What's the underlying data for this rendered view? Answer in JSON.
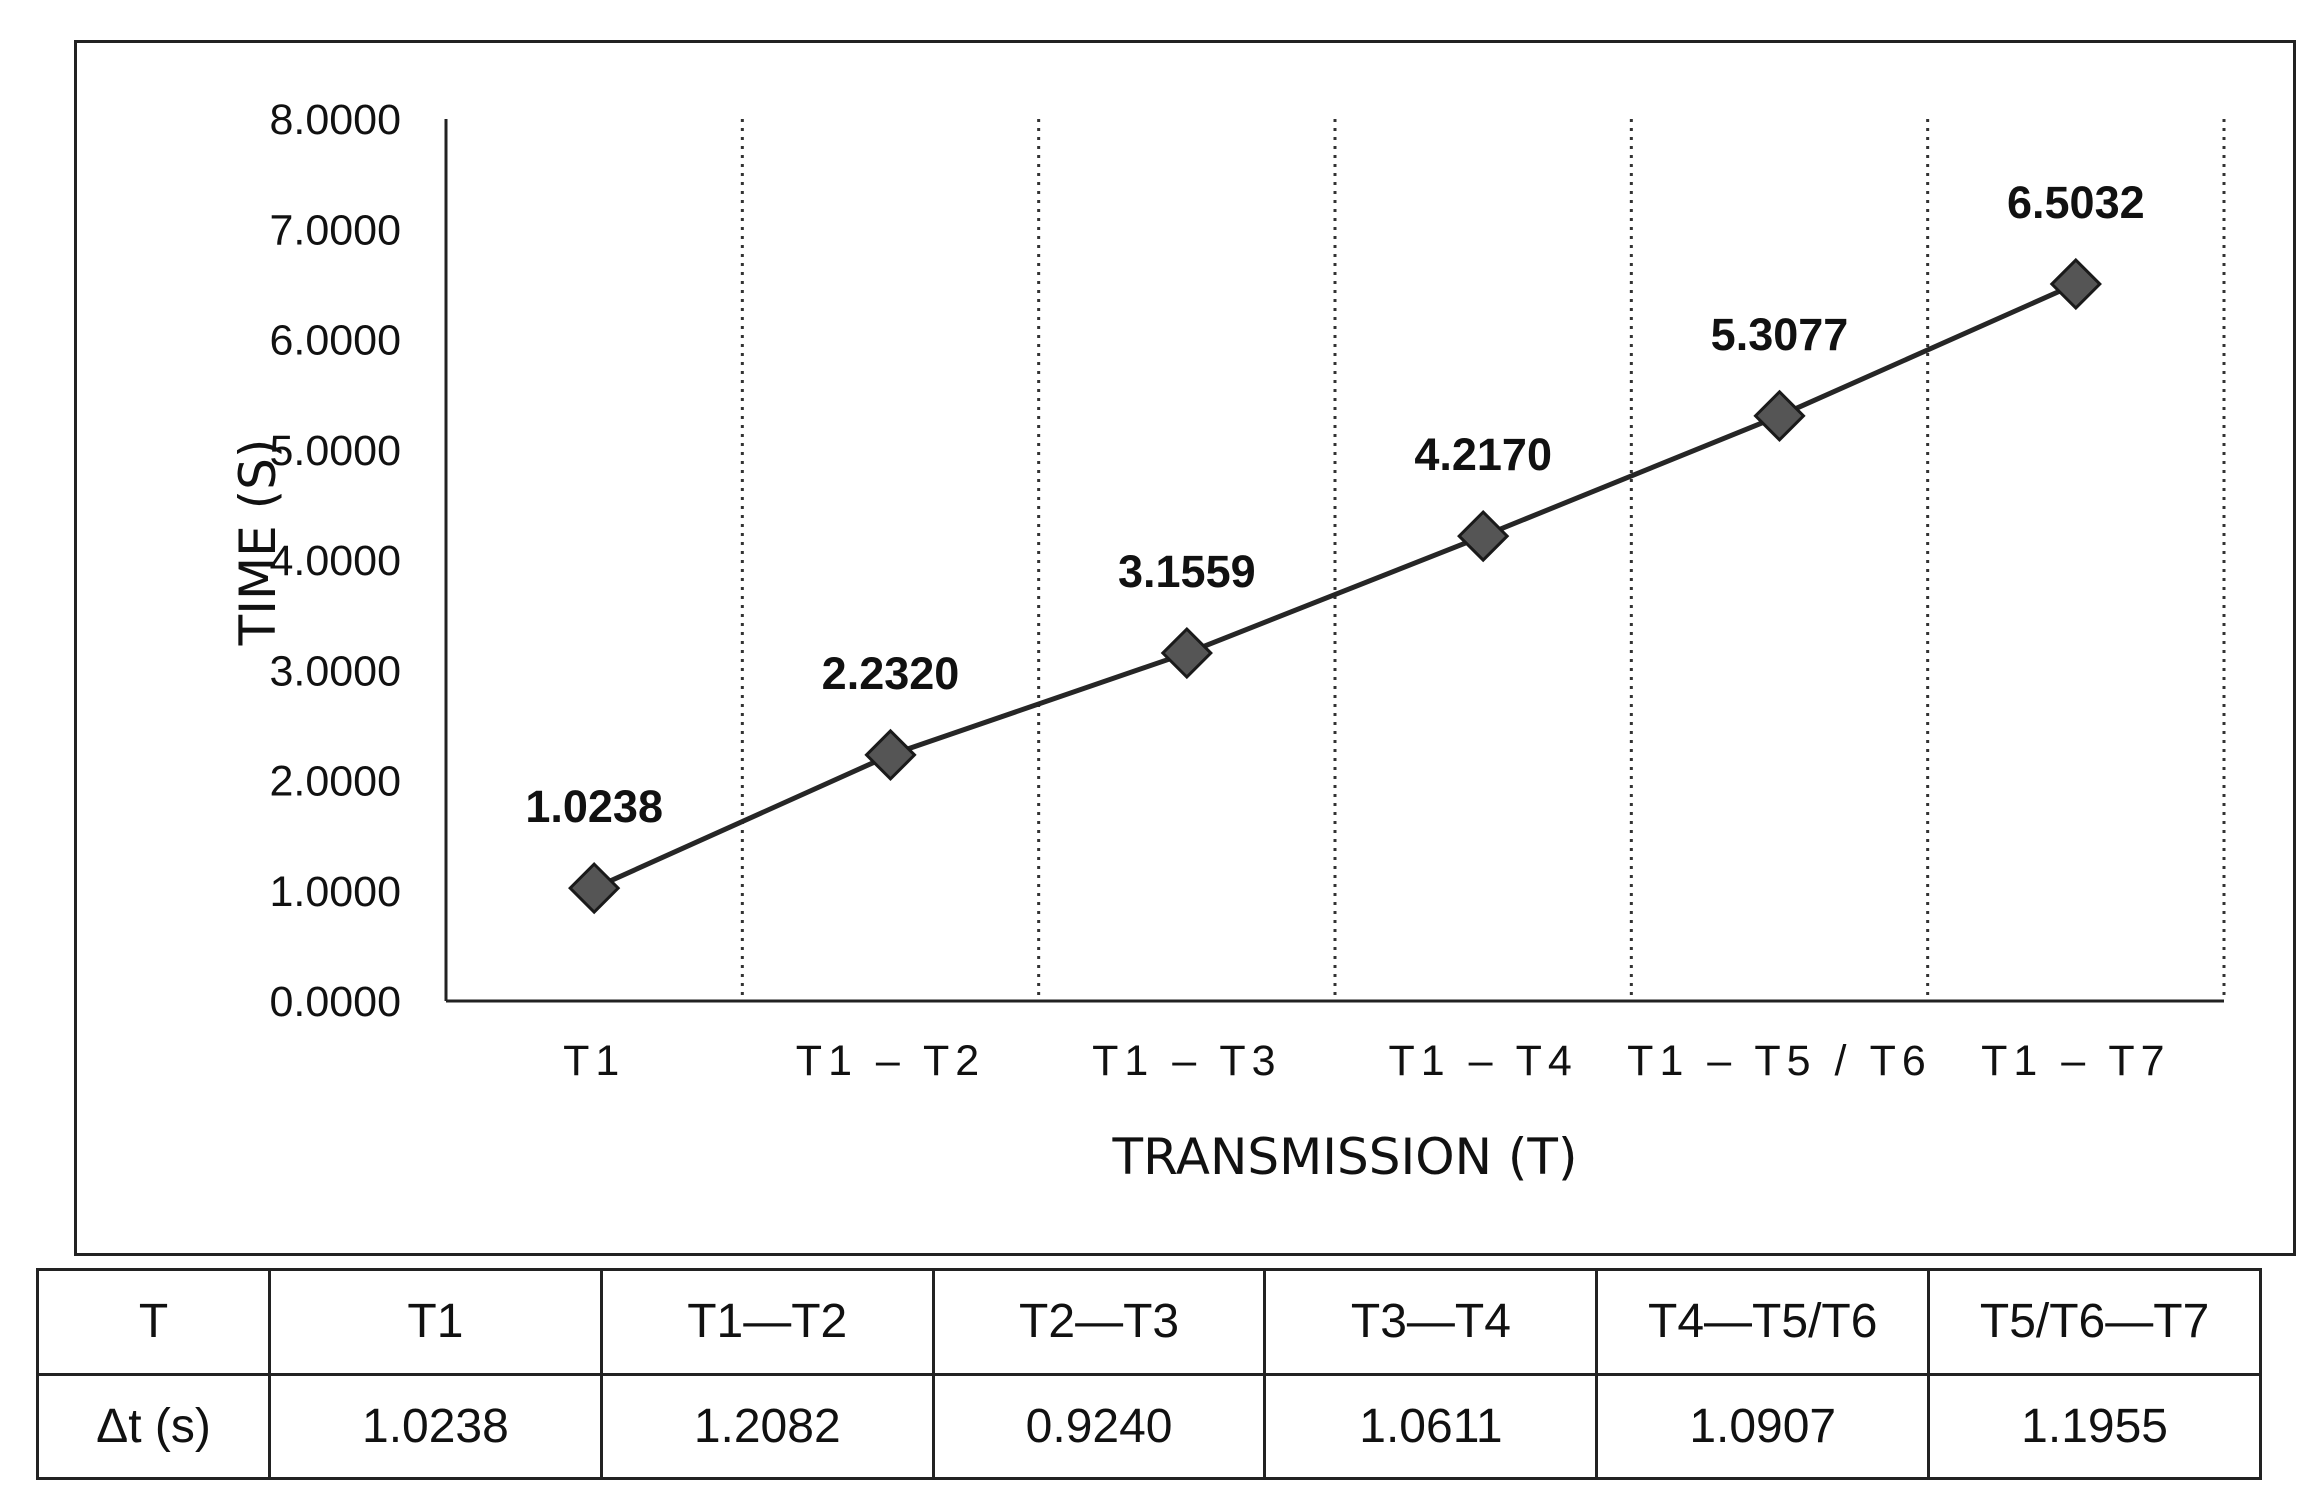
{
  "chart_data": {
    "type": "line",
    "categories": [
      "T1",
      "T1 – T2",
      "T1 – T3",
      "T1 – T4",
      "T1 – T5  /  T6",
      "T1 – T7"
    ],
    "values": [
      1.0238,
      2.232,
      3.1559,
      4.217,
      5.3077,
      6.5032
    ],
    "data_labels": [
      "1.0238",
      "2.2320",
      "3.1559",
      "4.2170",
      "5.3077",
      "6.5032"
    ],
    "ytick_labels": [
      "0.0000",
      "1.0000",
      "2.0000",
      "3.0000",
      "4.0000",
      "5.0000",
      "6.0000",
      "7.0000",
      "8.0000"
    ],
    "xlabel": "TRANSMISSION (T)",
    "ylabel": "TIME (S)",
    "ylim": [
      0,
      8
    ],
    "marker": "diamond",
    "grid": "vertical dotted separators",
    "colors": {
      "line": "#262626",
      "marker": "#555555",
      "marker_edge": "#1a1a1a",
      "grid": "#333333"
    }
  },
  "table": {
    "header_row": [
      "T",
      "T1",
      "T1—T2",
      "T2—T3",
      "T3—T4",
      "T4—T5/T6",
      "T5/T6—T7"
    ],
    "value_row": [
      "Δt (s)",
      "1.0238",
      "1.2082",
      "0.9240",
      "1.0611",
      "1.0907",
      "1.1955"
    ]
  }
}
